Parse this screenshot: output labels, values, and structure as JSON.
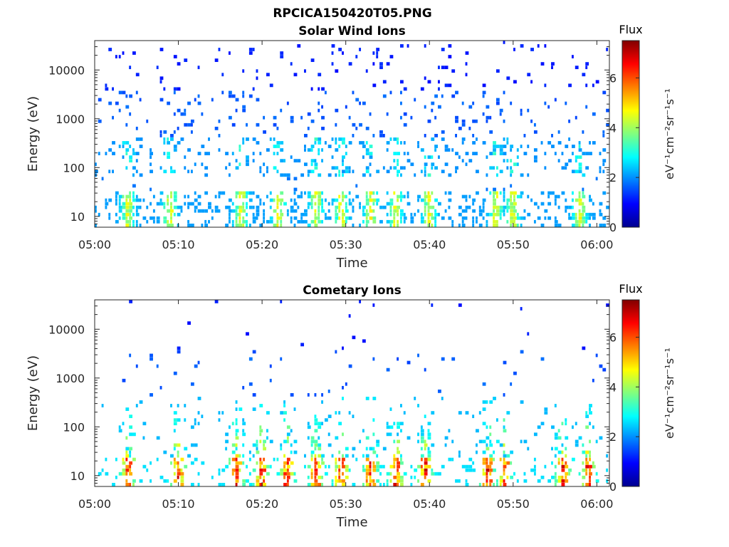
{
  "figure_title": "RPCICA150420T05.PNG",
  "chart_data": [
    {
      "type": "heatmap",
      "title": "Solar Wind Ions",
      "xlabel": "Time",
      "ylabel": "Energy (eV)",
      "x_ticks": [
        "05:00",
        "05:10",
        "05:20",
        "05:30",
        "05:40",
        "05:50",
        "06:00"
      ],
      "x_range_minutes": [
        0,
        61.5
      ],
      "y_scale": "log",
      "y_range": [
        6,
        40000
      ],
      "y_ticks": [
        {
          "value": 10,
          "label": "10"
        },
        {
          "value": 100,
          "label": "100"
        },
        {
          "value": 1000,
          "label": "1000"
        },
        {
          "value": 10000,
          "label": "10000"
        }
      ],
      "colorbar": {
        "title": "Flux",
        "label": "eV⁻¹cm⁻²sr⁻¹s⁻¹",
        "range": [
          0,
          7.5
        ],
        "ticks": [
          0,
          2,
          4,
          6
        ],
        "colormap": "jet"
      },
      "intensity_bursts_minutes": [
        4,
        9,
        17.5,
        22,
        26.5,
        29.5,
        33,
        36,
        40,
        48,
        50,
        58
      ],
      "background_flux": 1.8,
      "peak_flux": 4.6
    },
    {
      "type": "heatmap",
      "title": "Cometary Ions",
      "xlabel": "Time",
      "ylabel": "Energy (eV)",
      "x_ticks": [
        "05:00",
        "05:10",
        "05:20",
        "05:30",
        "05:40",
        "05:50",
        "06:00"
      ],
      "x_range_minutes": [
        0,
        61.5
      ],
      "y_scale": "log",
      "y_range": [
        6,
        40000
      ],
      "y_ticks": [
        {
          "value": 10,
          "label": "10"
        },
        {
          "value": 100,
          "label": "100"
        },
        {
          "value": 1000,
          "label": "1000"
        },
        {
          "value": 10000,
          "label": "10000"
        }
      ],
      "colorbar": {
        "title": "Flux",
        "label": "eV⁻¹cm⁻²sr⁻¹s⁻¹",
        "range": [
          0,
          7.5
        ],
        "ticks": [
          0,
          2,
          4,
          6
        ],
        "colormap": "jet"
      },
      "intensity_bursts_minutes": [
        4,
        10,
        17,
        20,
        23,
        26.5,
        29.5,
        33,
        36,
        39.5,
        47,
        49,
        56,
        59
      ],
      "background_flux": 2.0,
      "peak_flux": 6.5
    }
  ]
}
